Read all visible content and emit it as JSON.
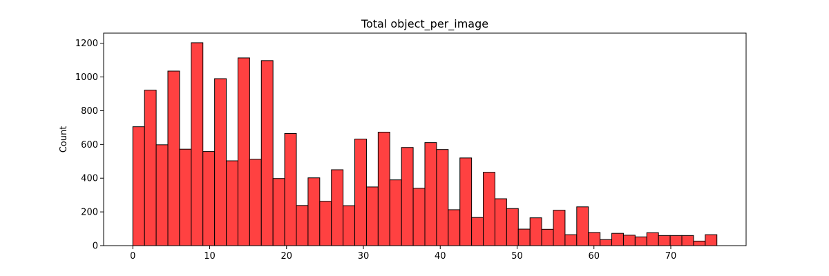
{
  "chart_data": {
    "type": "bar",
    "title": "Total object_per_image",
    "xlabel": "",
    "ylabel": "Count",
    "bin_start": 0,
    "bin_width": 1.52,
    "values": [
      705,
      922,
      598,
      1035,
      572,
      1203,
      558,
      990,
      503,
      1113,
      512,
      1097,
      398,
      665,
      238,
      402,
      263,
      450,
      237,
      632,
      348,
      673,
      390,
      582,
      340,
      611,
      570,
      213,
      520,
      167,
      435,
      278,
      220,
      98,
      165,
      97,
      210,
      65,
      230,
      78,
      36,
      73,
      62,
      52,
      77,
      60,
      60,
      60,
      27,
      65
    ],
    "xlim": [
      -3.8,
      79.8
    ],
    "ylim": [
      0,
      1260
    ],
    "xticks": [
      0,
      10,
      20,
      30,
      40,
      50,
      60,
      70
    ],
    "yticks": [
      0,
      200,
      400,
      600,
      800,
      1000,
      1200
    ],
    "grid": false,
    "colors": {
      "bar_fill": "#ff4141",
      "bar_edge": "#000000"
    }
  }
}
